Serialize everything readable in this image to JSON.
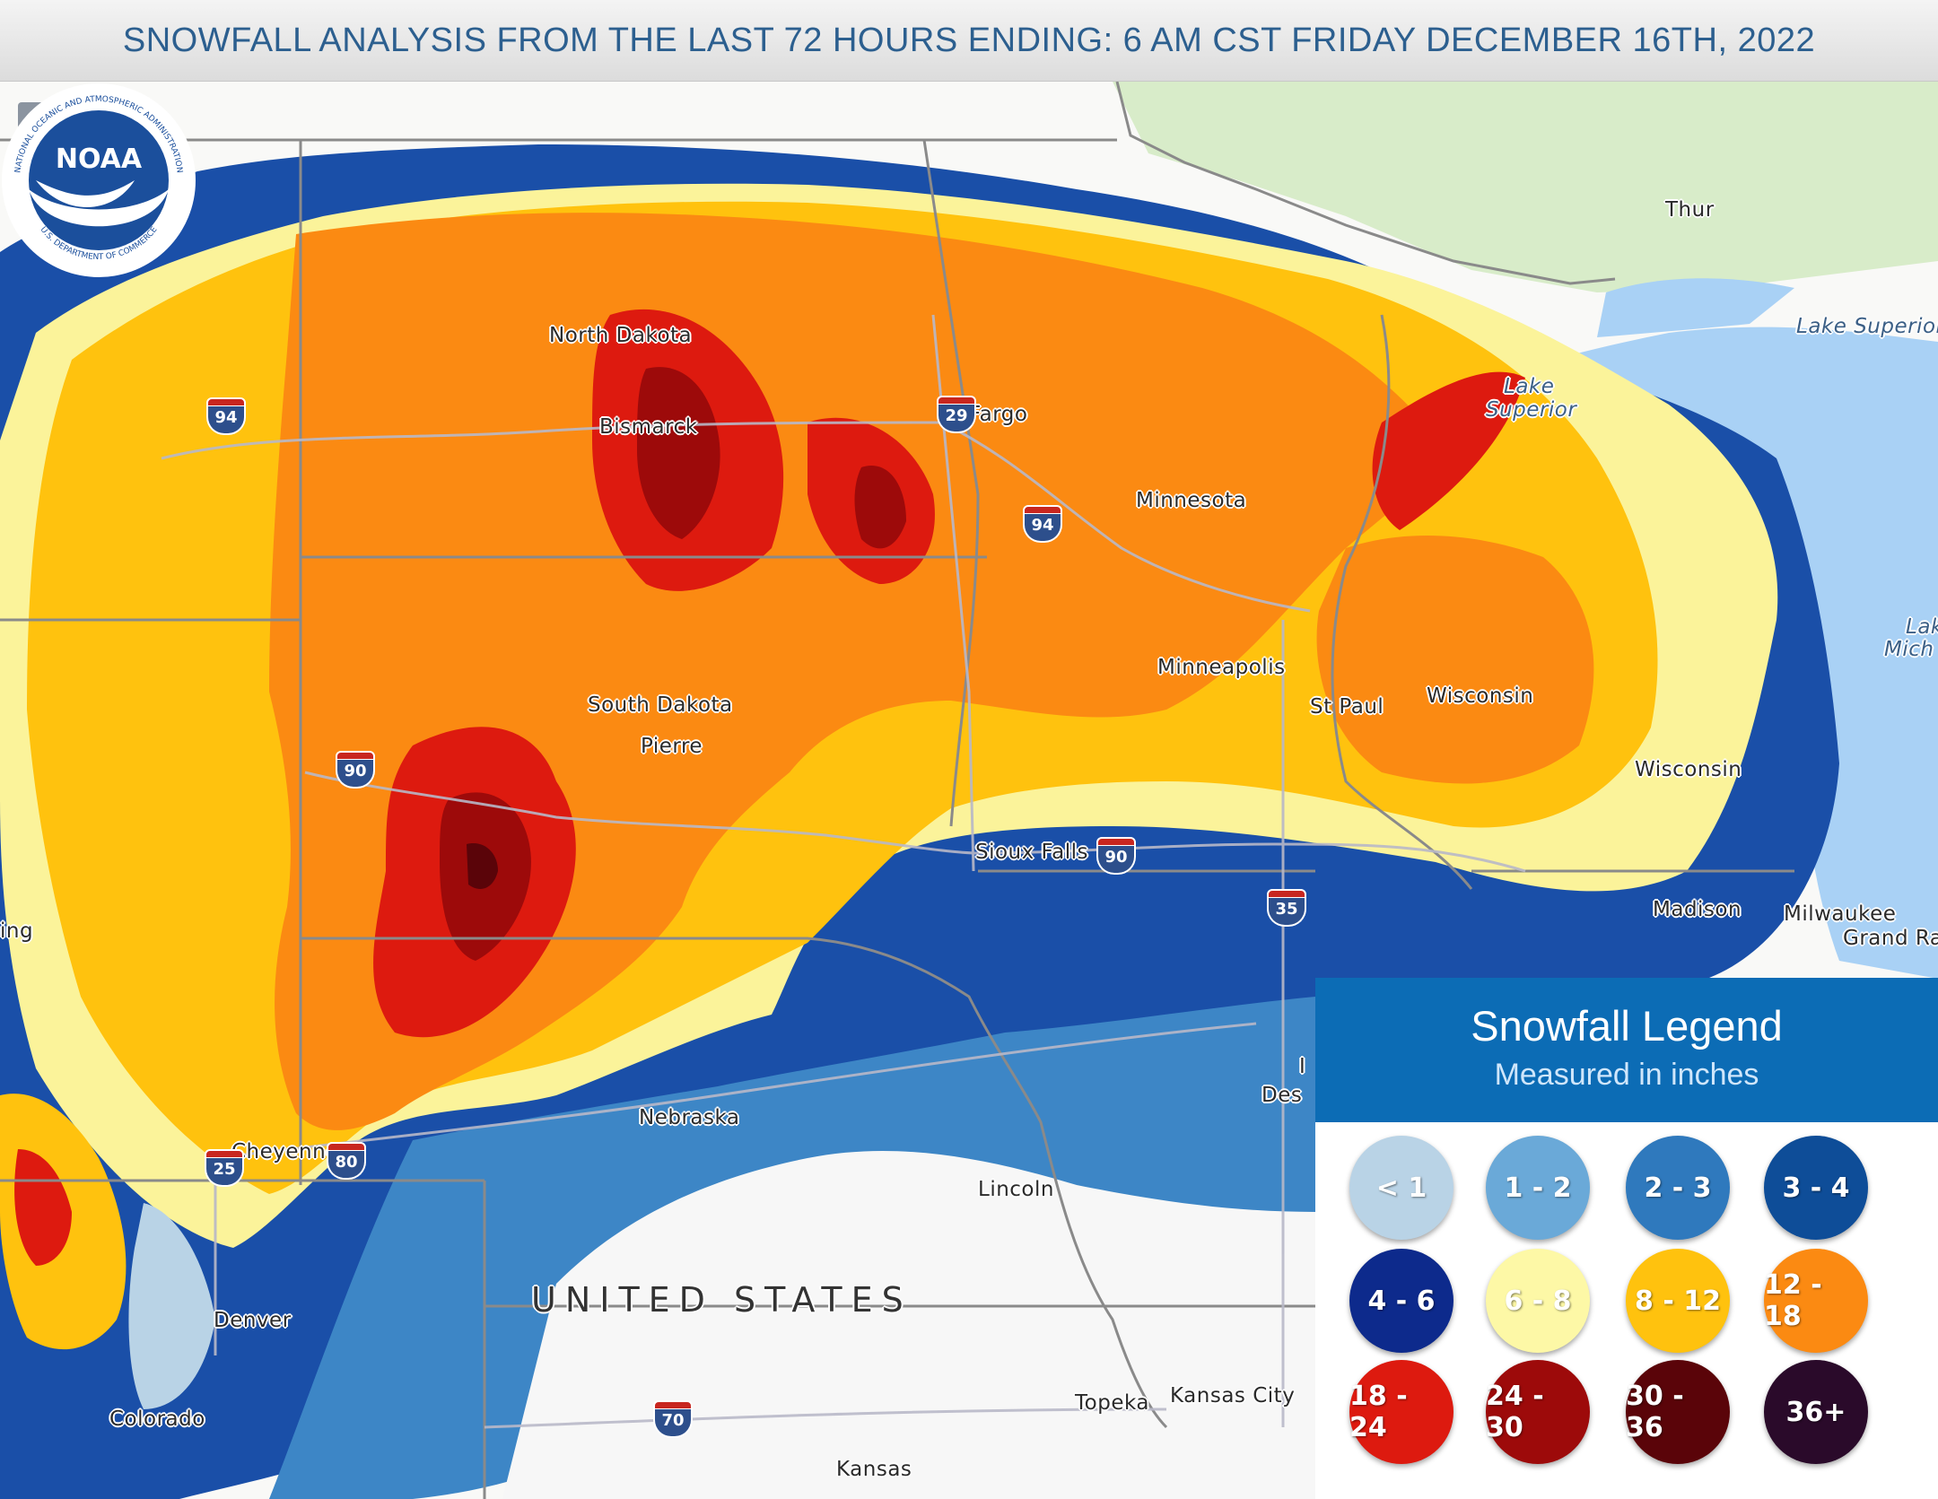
{
  "header": {
    "title": "SNOWFALL ANALYSIS FROM THE LAST 72 HOURS ENDING: 6 AM CST FRIDAY DECEMBER 16TH, 2022"
  },
  "map": {
    "zoom_in": "+",
    "zoom_out": "−",
    "places": {
      "north_dakota": "North Dakota",
      "bismarck": "Bismarck",
      "fargo": "Fargo",
      "minnesota": "Minnesota",
      "south_dakota": "South Dakota",
      "pierre": "Pierre",
      "minneapolis": "Minneapolis",
      "st_paul": "St Paul",
      "wisconsin_1": "Wisconsin",
      "wisconsin_2": "Wisconsin",
      "sioux_falls": "Sioux Falls",
      "madison": "Madison",
      "milwaukee": "Milwaukee",
      "grand_rapids": "Grand Ra",
      "des_moines": "Des",
      "iowa_partial": "I",
      "nebraska": "Nebraska",
      "lincoln": "Lincoln",
      "cheyenne": "Cheyenne",
      "denver": "Denver",
      "colorado": "Colorado",
      "kansas": "Kansas",
      "topeka": "Topeka",
      "kansas_city": "Kansas City",
      "thunder_bay": "Thur",
      "wyoming_partial": "ing",
      "united_states": "UNITED STATES",
      "lake_superior_1": "Lake Superior",
      "lake_superior_2a": "Lake",
      "lake_superior_2b": "Superior",
      "lake_michigan_a": "Lak",
      "lake_michigan_b": "Mich"
    },
    "interstates": {
      "i94_west": "94",
      "i29": "29",
      "i94_mn": "94",
      "i90_sd": "90",
      "i90_mn": "90",
      "i35": "35",
      "i25": "25",
      "i80": "80",
      "i70": "70"
    },
    "logo": {
      "text": "NOAA",
      "ring_top": "NATIONAL OCEANIC AND ATMOSPHERIC ADMINISTRATION",
      "ring_bottom": "U.S. DEPARTMENT OF COMMERCE"
    }
  },
  "legend": {
    "title": "Snowfall Legend",
    "subtitle": "Measured in inches",
    "items": [
      {
        "label": "< 1",
        "color": "#b9d3e6"
      },
      {
        "label": "1 - 2",
        "color": "#6aa9d8"
      },
      {
        "label": "2 - 3",
        "color": "#2f79bd"
      },
      {
        "label": "3 - 4",
        "color": "#0e4d98"
      },
      {
        "label": "4 - 6",
        "color": "#0d2a8c"
      },
      {
        "label": "6 - 8",
        "color": "#fdf8a6"
      },
      {
        "label": "8 - 12",
        "color": "#ffc20e"
      },
      {
        "label": "12 - 18",
        "color": "#fb8a12"
      },
      {
        "label": "18 - 24",
        "color": "#dd1a0f"
      },
      {
        "label": "24 - 30",
        "color": "#9d0a0a"
      },
      {
        "label": "30 - 36",
        "color": "#5a0409"
      },
      {
        "label": "36+",
        "color": "#2a0a2a"
      }
    ]
  }
}
